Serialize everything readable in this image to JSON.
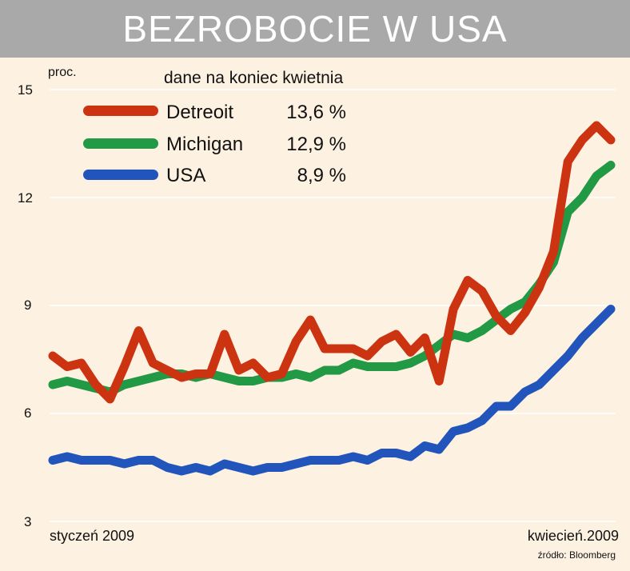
{
  "title": "BEZROBOCIE W USA",
  "unit_label": "proc.",
  "subtitle": "dane na koniec kwietnia",
  "x_start_label": "styczeń 2009",
  "x_end_label": "kwiecień.2009",
  "source": "źródło: Bloomberg",
  "colors": {
    "background": "#fdf1e1",
    "title_bar": "#a9a9a9",
    "detroit": "#cc3311",
    "michigan": "#229944",
    "usa": "#2255bb"
  },
  "legend": [
    {
      "name": "Detreoit",
      "value": "13,6 %",
      "color": "#cc3311"
    },
    {
      "name": "Michigan",
      "value": "12,9 %",
      "color": "#229944"
    },
    {
      "name": "USA",
      "value": "8,9 %",
      "color": "#2255bb"
    }
  ],
  "chart_data": {
    "type": "line",
    "ylim": [
      3,
      15
    ],
    "yticks": [
      "3",
      "6",
      "9",
      "12",
      "15"
    ],
    "grid": true,
    "legend_position": "top-left",
    "series": [
      {
        "name": "Detreoit",
        "color": "#cc3311",
        "values": [
          7.6,
          7.3,
          7.4,
          6.8,
          6.4,
          7.3,
          8.3,
          7.4,
          7.2,
          7.0,
          7.1,
          7.1,
          8.2,
          7.2,
          7.4,
          7.0,
          7.1,
          8.0,
          8.6,
          7.8,
          7.8,
          7.8,
          7.6,
          8.0,
          8.2,
          7.7,
          8.1,
          6.9,
          8.9,
          9.7,
          9.4,
          8.7,
          8.3,
          8.8,
          9.5,
          10.5,
          13.0,
          13.6,
          14.0,
          13.6
        ]
      },
      {
        "name": "Michigan",
        "color": "#229944",
        "values": [
          6.8,
          6.9,
          6.8,
          6.7,
          6.6,
          6.8,
          6.9,
          7.0,
          7.1,
          7.1,
          7.0,
          7.1,
          7.0,
          6.9,
          6.9,
          7.0,
          7.0,
          7.1,
          7.0,
          7.2,
          7.2,
          7.4,
          7.3,
          7.3,
          7.3,
          7.4,
          7.6,
          7.9,
          8.2,
          8.1,
          8.3,
          8.6,
          8.9,
          9.1,
          9.6,
          10.2,
          11.6,
          12.0,
          12.6,
          12.9
        ]
      },
      {
        "name": "USA",
        "color": "#2255bb",
        "values": [
          4.7,
          4.8,
          4.7,
          4.7,
          4.7,
          4.6,
          4.7,
          4.7,
          4.5,
          4.4,
          4.5,
          4.4,
          4.6,
          4.5,
          4.4,
          4.5,
          4.5,
          4.6,
          4.7,
          4.7,
          4.7,
          4.8,
          4.7,
          4.9,
          4.9,
          4.8,
          5.1,
          5.0,
          5.5,
          5.6,
          5.8,
          6.2,
          6.2,
          6.6,
          6.8,
          7.2,
          7.6,
          8.1,
          8.5,
          8.9
        ]
      }
    ]
  }
}
